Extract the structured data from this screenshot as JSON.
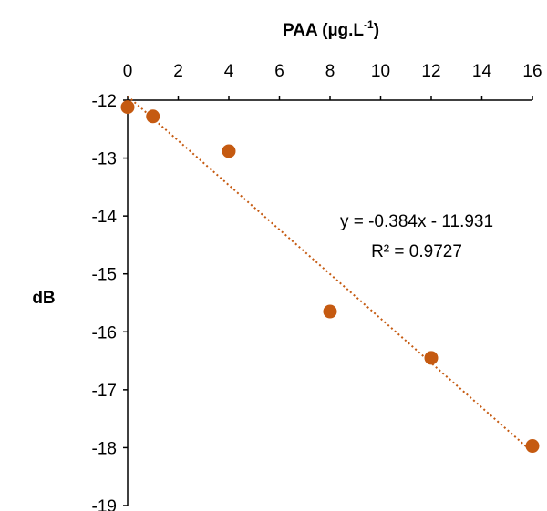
{
  "chart_data": {
    "type": "scatter",
    "title": "",
    "xlabel": "PAA (µg.L",
    "xlabel_sup": "-1",
    "xlabel_close": ")",
    "ylabel": "dB",
    "xlim": [
      0,
      16
    ],
    "ylim": [
      -19,
      -12
    ],
    "xticks": [
      0,
      2,
      4,
      6,
      8,
      10,
      12,
      14,
      16
    ],
    "yticks": [
      -12,
      -13,
      -14,
      -15,
      -16,
      -17,
      -18,
      -19
    ],
    "x_axis_position": "top",
    "grid": false,
    "series": [
      {
        "x": [
          0,
          1,
          4,
          8,
          12,
          16
        ],
        "y": [
          -12.12,
          -12.28,
          -12.88,
          -15.65,
          -16.45,
          -17.97
        ],
        "color": "#C55A11"
      }
    ],
    "trendline": {
      "type": "linear",
      "slope": -0.384,
      "intercept": -11.931,
      "style": "dotted",
      "color": "#C55A11"
    },
    "annotations": [
      "y = -0.384x - 11.931",
      "R² = 0.9727"
    ]
  }
}
